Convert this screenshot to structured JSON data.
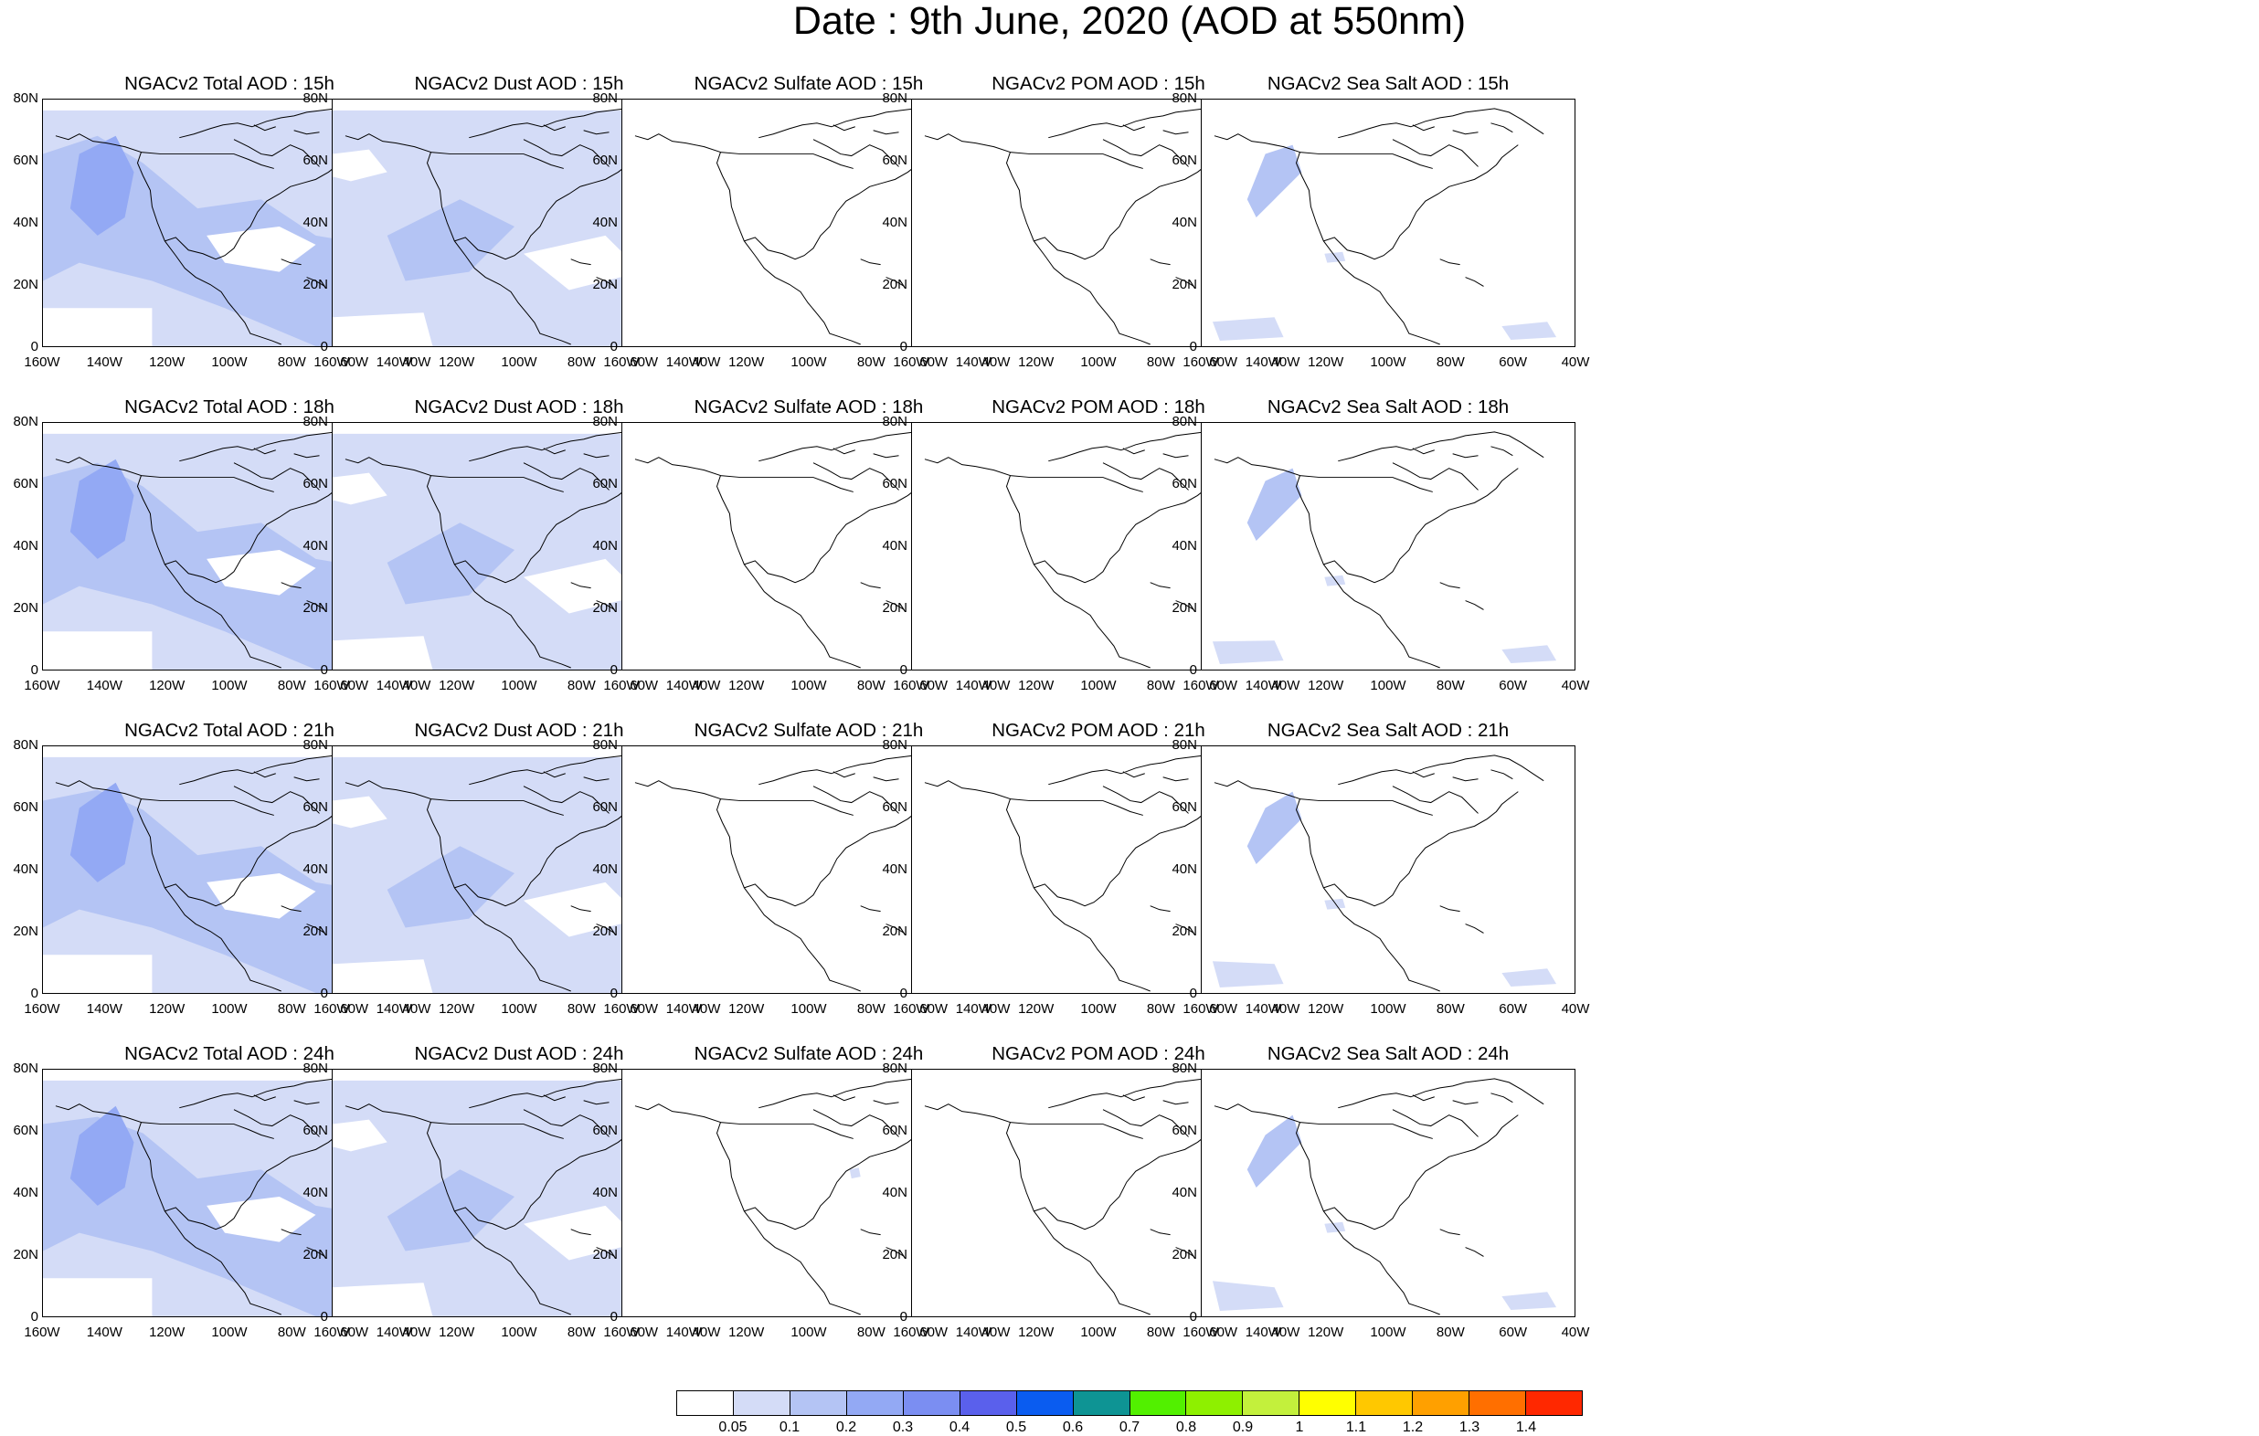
{
  "title": "Date : 9th June, 2020 (AOD at 550nm)",
  "lat_labels": [
    "80N",
    "60N",
    "40N",
    "20N",
    "0"
  ],
  "lon_labels": [
    "160W",
    "140W",
    "120W",
    "100W",
    "80W",
    "60W",
    "40W"
  ],
  "rows": [
    {
      "hour": "15h",
      "panels": [
        {
          "title": "NGACv2 Total AOD : 15h",
          "species": "total"
        },
        {
          "title": "NGACv2 Dust AOD : 15h",
          "species": "dust"
        },
        {
          "title": "NGACv2 Sulfate AOD : 15h",
          "species": "sulfate"
        },
        {
          "title": "NGACv2 POM AOD : 15h",
          "species": "pom"
        },
        {
          "title": "NGACv2 Sea Salt AOD : 15h",
          "species": "seasalt"
        }
      ]
    },
    {
      "hour": "18h",
      "panels": [
        {
          "title": "NGACv2 Total AOD : 18h",
          "species": "total"
        },
        {
          "title": "NGACv2 Dust AOD : 18h",
          "species": "dust"
        },
        {
          "title": "NGACv2 Sulfate AOD : 18h",
          "species": "sulfate"
        },
        {
          "title": "NGACv2 POM AOD : 18h",
          "species": "pom"
        },
        {
          "title": "NGACv2 Sea Salt AOD : 18h",
          "species": "seasalt"
        }
      ]
    },
    {
      "hour": "21h",
      "panels": [
        {
          "title": "NGACv2 Total AOD : 21h",
          "species": "total"
        },
        {
          "title": "NGACv2 Dust AOD : 21h",
          "species": "dust"
        },
        {
          "title": "NGACv2 Sulfate AOD : 21h",
          "species": "sulfate"
        },
        {
          "title": "NGACv2 POM AOD : 21h",
          "species": "pom"
        },
        {
          "title": "NGACv2 Sea Salt AOD : 21h",
          "species": "seasalt"
        }
      ]
    },
    {
      "hour": "24h",
      "panels": [
        {
          "title": "NGACv2 Total AOD : 24h",
          "species": "total"
        },
        {
          "title": "NGACv2 Dust AOD : 24h",
          "species": "dust"
        },
        {
          "title": "NGACv2 Sulfate AOD : 24h",
          "species": "sulfate"
        },
        {
          "title": "NGACv2 POM AOD : 24h",
          "species": "pom"
        },
        {
          "title": "NGACv2 Sea Salt  AOD : 24h",
          "species": "seasalt"
        }
      ]
    }
  ],
  "colorbar": {
    "colors": [
      "#ffffff",
      "#d4dcf7",
      "#b4c4f4",
      "#93a9f4",
      "#7b8ef2",
      "#5a60ec",
      "#0a5cf0",
      "#0e9494",
      "#52f000",
      "#8ef000",
      "#c3f03c",
      "#ffff00",
      "#ffc800",
      "#ffa000",
      "#ff6f00",
      "#ff2800"
    ],
    "labels": [
      "0.05",
      "0.1",
      "0.2",
      "0.3",
      "0.4",
      "0.5",
      "0.6",
      "0.7",
      "0.8",
      "0.9",
      "1",
      "1.1",
      "1.2",
      "1.3",
      "1.4"
    ]
  }
}
